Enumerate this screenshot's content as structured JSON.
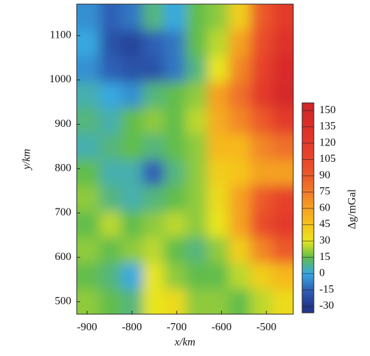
{
  "chart_data": {
    "type": "heatmap",
    "x_label": "x/km",
    "y_label": "y/km",
    "xlim": [
      -923,
      -440
    ],
    "ylim": [
      472,
      1171
    ],
    "xticks": [
      -900,
      -800,
      -700,
      -600,
      -500
    ],
    "yticks": [
      500,
      600,
      700,
      800,
      900,
      1000,
      1100
    ],
    "x": [
      -896,
      -848,
      -800,
      -752,
      -704,
      -656,
      -608,
      -560,
      -512,
      -464
    ],
    "y": [
      1141,
      1083,
      1024,
      966,
      908,
      849,
      791,
      733,
      674,
      616,
      558,
      499
    ],
    "z": [
      [
        -5,
        -15,
        -10,
        10,
        0,
        15,
        20,
        40,
        90,
        120
      ],
      [
        0,
        -20,
        -25,
        -15,
        -10,
        15,
        25,
        60,
        100,
        130
      ],
      [
        -5,
        -15,
        -20,
        -20,
        -10,
        10,
        30,
        70,
        110,
        140
      ],
      [
        5,
        0,
        -5,
        10,
        15,
        20,
        60,
        80,
        120,
        145
      ],
      [
        10,
        5,
        15,
        20,
        15,
        25,
        55,
        70,
        90,
        120
      ],
      [
        5,
        10,
        15,
        10,
        15,
        20,
        50,
        50,
        70,
        80
      ],
      [
        15,
        5,
        5,
        -15,
        10,
        20,
        40,
        45,
        60,
        60
      ],
      [
        20,
        10,
        5,
        10,
        15,
        20,
        35,
        60,
        90,
        110
      ],
      [
        15,
        25,
        15,
        20,
        25,
        20,
        30,
        60,
        100,
        120
      ],
      [
        20,
        15,
        20,
        25,
        15,
        10,
        20,
        40,
        70,
        90
      ],
      [
        15,
        10,
        0,
        30,
        20,
        15,
        15,
        25,
        40,
        50
      ],
      [
        20,
        15,
        10,
        30,
        35,
        20,
        20,
        15,
        25,
        35
      ]
    ],
    "colorbar": {
      "label": "Δg/mGal",
      "lim": [
        -36,
        157
      ],
      "ticks": [
        -30,
        -15,
        0,
        15,
        30,
        45,
        60,
        75,
        90,
        105,
        120,
        135,
        150
      ],
      "colors": [
        "#25378c",
        "#2f5fb5",
        "#38a8e0",
        "#62bd4b",
        "#e8e51e",
        "#f6c31a",
        "#f5a124",
        "#f07a2a",
        "#ec5a2a",
        "#e8462a",
        "#e33a2b",
        "#dc2f2a",
        "#d2262a"
      ]
    }
  }
}
